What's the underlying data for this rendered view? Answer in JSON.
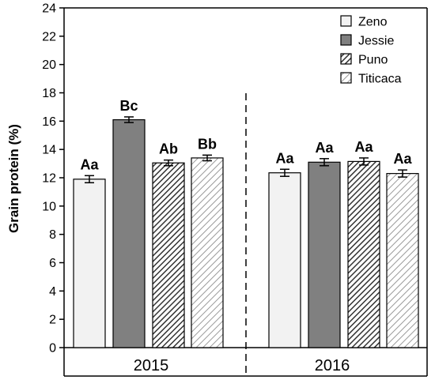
{
  "chart_data": {
    "type": "bar",
    "ylabel": "Grain protein (%)",
    "ylim": [
      0,
      24
    ],
    "yticks": [
      0,
      2,
      4,
      6,
      8,
      10,
      12,
      14,
      16,
      18,
      20,
      22,
      24
    ],
    "grid": false,
    "legend_position": "top-right",
    "groups": [
      "2015",
      "2016"
    ],
    "series": [
      {
        "name": "Zeno",
        "fill": "#f2f2f2",
        "pattern": "solid",
        "values": [
          11.9,
          12.35
        ],
        "errors": [
          0.25,
          0.25
        ],
        "labels": [
          "Aa",
          "Aa"
        ]
      },
      {
        "name": "Jessie",
        "fill": "#808080",
        "pattern": "solid",
        "values": [
          16.1,
          13.1
        ],
        "errors": [
          0.2,
          0.25
        ],
        "labels": [
          "Bc",
          "Aa"
        ]
      },
      {
        "name": "Puno",
        "fill": "#555555",
        "pattern": "hatch-dense",
        "values": [
          13.05,
          13.15
        ],
        "errors": [
          0.2,
          0.25
        ],
        "labels": [
          "Ab",
          "Aa"
        ]
      },
      {
        "name": "Titicaca",
        "fill": "#888888",
        "pattern": "hatch-light",
        "values": [
          13.4,
          12.3
        ],
        "errors": [
          0.2,
          0.25
        ],
        "labels": [
          "Bb",
          "Aa"
        ]
      }
    ],
    "colors": {
      "axis": "#000000",
      "bar_outline": "#000000"
    }
  }
}
